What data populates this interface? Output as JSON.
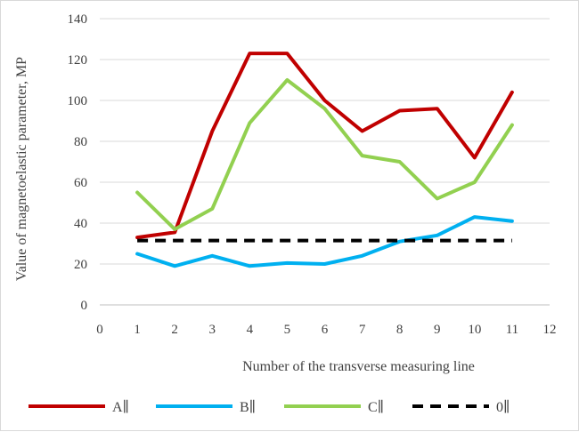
{
  "chart_data": {
    "type": "line",
    "xlabel": "Number of the transverse measuring line",
    "ylabel": "Value of magnetoelastic parameter, MP",
    "xlim": [
      0,
      12
    ],
    "ylim": [
      0,
      140
    ],
    "x_ticks": [
      0,
      1,
      2,
      3,
      4,
      5,
      6,
      7,
      8,
      9,
      10,
      11,
      12
    ],
    "y_ticks": [
      0,
      20,
      40,
      60,
      80,
      100,
      120,
      140
    ],
    "grid": "horizontal",
    "legend_position": "bottom",
    "series": [
      {
        "name": "A∥",
        "color": "#c00000",
        "dash": "solid",
        "x": [
          1,
          2,
          3,
          4,
          5,
          6,
          7,
          8,
          9,
          10,
          11
        ],
        "values": [
          33,
          35.5,
          85,
          123,
          123,
          100,
          85,
          95,
          96,
          72,
          104
        ]
      },
      {
        "name": "B∥",
        "color": "#00b0f0",
        "dash": "solid",
        "x": [
          1,
          2,
          3,
          4,
          5,
          6,
          7,
          8,
          9,
          10,
          11
        ],
        "values": [
          25,
          19,
          24,
          19,
          20.5,
          20,
          24,
          31,
          34,
          43,
          41
        ]
      },
      {
        "name": "C∥",
        "color": "#92d050",
        "dash": "solid",
        "x": [
          1,
          2,
          3,
          4,
          5,
          6,
          7,
          8,
          9,
          10,
          11
        ],
        "values": [
          55,
          37,
          47,
          89,
          110,
          96,
          73,
          70,
          52,
          60,
          88
        ]
      },
      {
        "name": "0∥",
        "color": "#000000",
        "dash": "dashed",
        "x": [
          1,
          2,
          3,
          4,
          5,
          6,
          7,
          8,
          9,
          10,
          11
        ],
        "values": [
          31.5,
          31.5,
          31.5,
          31.5,
          31.5,
          31.5,
          31.5,
          31.5,
          31.5,
          31.5,
          31.5
        ]
      }
    ]
  }
}
